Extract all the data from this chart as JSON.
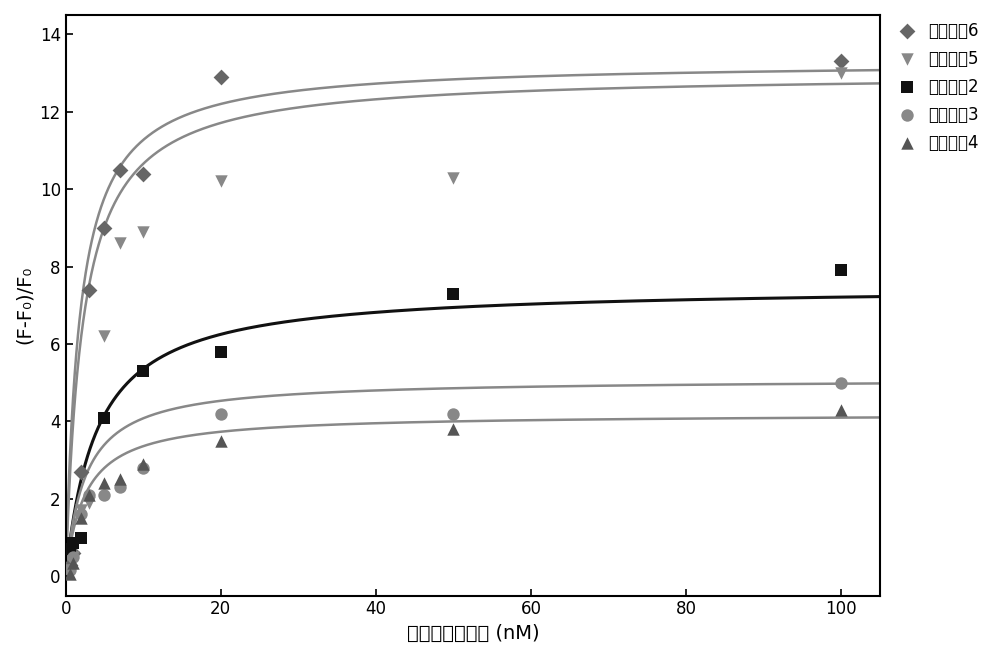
{
  "series": [
    {
      "label": "核酸适䤴6",
      "marker": "D",
      "color": "#666666",
      "line_color": "#888888",
      "Bmax": 13.3,
      "Kd": 1.8,
      "scatter_x": [
        0.5,
        1,
        2,
        3,
        5,
        7,
        10,
        20,
        100
      ],
      "scatter_y": [
        0.3,
        0.6,
        2.7,
        7.4,
        9.0,
        10.5,
        10.4,
        12.9,
        13.3
      ]
    },
    {
      "label": "核酸适䤴5",
      "marker": "v",
      "color": "#888888",
      "line_color": "#888888",
      "Bmax": 13.0,
      "Kd": 2.2,
      "scatter_x": [
        0.5,
        1,
        2,
        3,
        5,
        7,
        10,
        20,
        50,
        100
      ],
      "scatter_y": [
        0.15,
        0.5,
        1.7,
        1.9,
        6.2,
        8.6,
        8.9,
        10.2,
        10.3,
        13.0
      ]
    },
    {
      "label": "核酸适䤴2",
      "marker": "s",
      "color": "#111111",
      "line_color": "#111111",
      "Bmax": 7.5,
      "Kd": 4.0,
      "scatter_x": [
        0.5,
        1,
        2,
        5,
        10,
        20,
        50,
        100
      ],
      "scatter_y": [
        0.7,
        0.85,
        1.0,
        4.1,
        5.3,
        5.8,
        7.3,
        7.9
      ]
    },
    {
      "label": "核酸适䤴3",
      "marker": "o",
      "color": "#888888",
      "line_color": "#888888",
      "Bmax": 5.1,
      "Kd": 2.5,
      "scatter_x": [
        0.5,
        1,
        2,
        3,
        5,
        7,
        10,
        20,
        50,
        100
      ],
      "scatter_y": [
        0.15,
        0.5,
        1.6,
        2.1,
        2.1,
        2.3,
        2.8,
        4.2,
        4.2,
        5.0
      ]
    },
    {
      "label": "核酸适䤴4",
      "marker": "^",
      "color": "#555555",
      "line_color": "#888888",
      "Bmax": 4.2,
      "Kd": 2.5,
      "scatter_x": [
        0.5,
        1,
        2,
        3,
        5,
        7,
        10,
        20,
        50,
        100
      ],
      "scatter_y": [
        0.05,
        0.35,
        1.5,
        2.1,
        2.4,
        2.5,
        2.9,
        3.5,
        3.8,
        4.3
      ]
    }
  ],
  "xlabel": "核酸适体的浓度 (nM)",
  "ylabel": "(F-F₀)/F₀",
  "xlim": [
    0,
    105
  ],
  "ylim": [
    -0.5,
    14.5
  ],
  "yticks": [
    0,
    2,
    4,
    6,
    8,
    10,
    12,
    14
  ],
  "xticks": [
    0,
    20,
    40,
    60,
    80,
    100
  ],
  "figsize": [
    10.0,
    6.58
  ],
  "dpi": 100
}
